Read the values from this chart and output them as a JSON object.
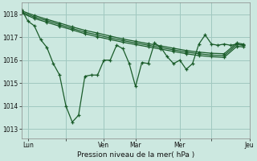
{
  "background_color": "#cce8e0",
  "grid_color": "#a0c8c0",
  "line_color": "#1a5c2a",
  "xlabel": "Pression niveau de la mer( hPa )",
  "ylim": [
    1012.6,
    1018.5
  ],
  "yticks": [
    1013,
    1014,
    1015,
    1016,
    1017,
    1018
  ],
  "xlim": [
    0,
    36
  ],
  "xtick_positions": [
    1,
    7,
    13,
    18,
    25,
    30,
    36
  ],
  "xtick_labels": [
    "Lun",
    "",
    "Ven",
    "Mar",
    "Mer",
    "",
    "Jeu"
  ],
  "vlines": [
    13,
    18,
    25,
    36
  ],
  "series1_x": [
    0,
    1,
    2,
    3,
    4,
    5,
    6,
    7,
    8,
    9,
    10,
    11,
    12,
    13,
    14,
    15,
    16,
    17,
    18,
    19,
    20,
    21,
    22,
    23,
    24,
    25,
    26,
    27,
    28,
    29,
    30,
    31,
    32,
    33,
    34,
    35
  ],
  "series1_y": [
    1018.2,
    1017.7,
    1017.5,
    1016.9,
    1016.55,
    1015.85,
    1015.35,
    1014.0,
    1013.3,
    1013.6,
    1015.3,
    1015.35,
    1015.35,
    1016.0,
    1016.0,
    1016.65,
    1016.5,
    1015.85,
    1014.85,
    1015.9,
    1015.85,
    1016.75,
    1016.55,
    1016.15,
    1015.85,
    1016.0,
    1015.6,
    1015.85,
    1016.7,
    1017.1,
    1016.7,
    1016.65,
    1016.7,
    1016.65,
    1016.7,
    1016.65
  ],
  "series2_x": [
    0,
    2,
    4,
    6,
    8,
    10,
    12,
    14,
    16,
    18,
    20,
    22,
    24,
    26,
    28,
    30,
    32,
    34,
    35
  ],
  "series2_y": [
    1018.15,
    1017.95,
    1017.78,
    1017.62,
    1017.45,
    1017.3,
    1017.18,
    1017.05,
    1016.92,
    1016.82,
    1016.72,
    1016.62,
    1016.52,
    1016.42,
    1016.35,
    1016.3,
    1016.28,
    1016.75,
    1016.7
  ],
  "series3_x": [
    0,
    2,
    4,
    6,
    8,
    10,
    12,
    14,
    16,
    18,
    20,
    22,
    24,
    26,
    28,
    30,
    32,
    34,
    35
  ],
  "series3_y": [
    1018.1,
    1017.88,
    1017.72,
    1017.55,
    1017.38,
    1017.22,
    1017.1,
    1016.97,
    1016.85,
    1016.75,
    1016.65,
    1016.55,
    1016.45,
    1016.35,
    1016.28,
    1016.22,
    1016.2,
    1016.68,
    1016.65
  ],
  "series4_x": [
    0,
    2,
    4,
    6,
    8,
    10,
    12,
    14,
    16,
    18,
    20,
    22,
    24,
    26,
    28,
    30,
    32,
    34,
    35
  ],
  "series4_y": [
    1018.05,
    1017.82,
    1017.65,
    1017.48,
    1017.32,
    1017.15,
    1017.02,
    1016.9,
    1016.78,
    1016.68,
    1016.58,
    1016.48,
    1016.38,
    1016.28,
    1016.2,
    1016.15,
    1016.12,
    1016.6,
    1016.58
  ]
}
